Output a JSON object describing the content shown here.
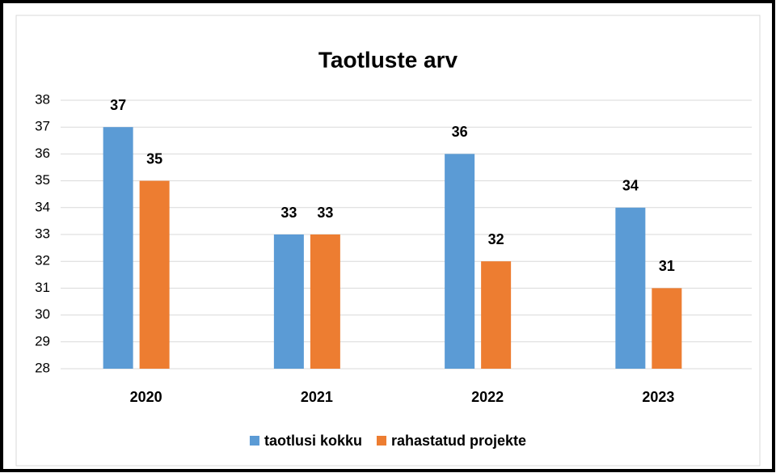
{
  "chart_data": {
    "type": "bar",
    "title": "Taotluste arv",
    "categories": [
      "2020",
      "2021",
      "2022",
      "2023"
    ],
    "series": [
      {
        "name": "taotlusi kokku",
        "color": "#5b9bd5",
        "values": [
          37,
          33,
          36,
          34
        ]
      },
      {
        "name": "rahastatud projekte",
        "color": "#ed7d31",
        "values": [
          35,
          33,
          32,
          31
        ]
      }
    ],
    "ylim": [
      28,
      38
    ],
    "yticks": [
      28,
      29,
      30,
      31,
      32,
      33,
      34,
      35,
      36,
      37,
      38
    ],
    "grid": true,
    "legend": "bottom"
  }
}
